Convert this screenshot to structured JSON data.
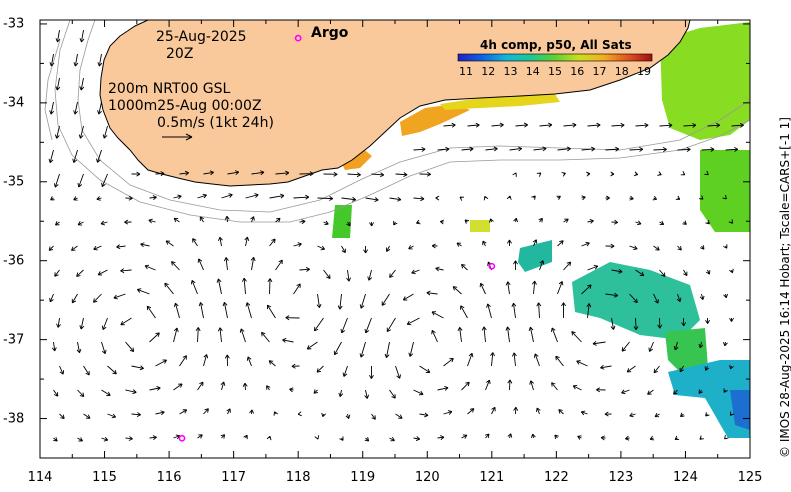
{
  "map": {
    "date": "25-Aug-2025",
    "time": "20Z",
    "info_line1": "200m  NRT00 GSL",
    "info_line2": "1000m25-Aug 00:00Z",
    "scale_label": "0.5m/s (1kt 24h)",
    "argo_label": "Argo",
    "colorbar_title": "4h comp, p50, All Sats",
    "colorbar_ticks": [
      "11",
      "12",
      "13",
      "14",
      "15",
      "16",
      "17",
      "18",
      "19"
    ],
    "x_ticks": [
      "114",
      "115",
      "116",
      "117",
      "118",
      "119",
      "120",
      "121",
      "122",
      "123",
      "124",
      "125"
    ],
    "y_ticks": [
      "-33",
      "-34",
      "-35",
      "-36",
      "-37",
      "-38"
    ],
    "credit": "© IMOS 28-Aug-2025 16:14 Hobart; Tscale=CARS+[-1 1]",
    "argo_floats": [
      {
        "lon": 121.0,
        "lat": -36.07
      },
      {
        "lon": 116.2,
        "lat": -38.25
      },
      {
        "lon": 118.0,
        "lat": -33.18
      }
    ],
    "colors": {
      "land": "#f9c99b",
      "argo": "#ff00ff",
      "arrow": "#000000",
      "contour": "#999999"
    }
  }
}
